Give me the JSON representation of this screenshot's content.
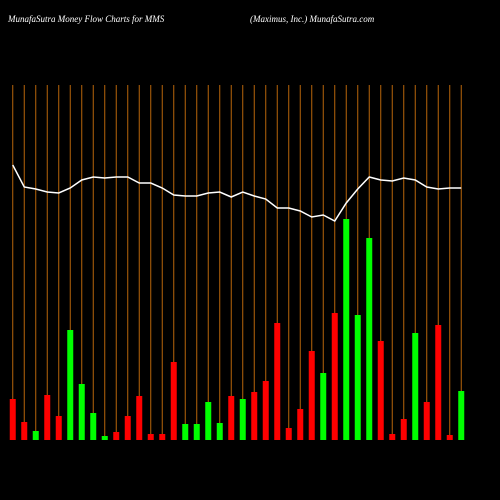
{
  "chart_data": {
    "type": "bar",
    "title": "MunafaSutra  Money Flow  Charts for MMS",
    "subtitle": "(Maximus,  Inc.) MunafaSutra.com",
    "categories": [
      null,
      null,
      null,
      null,
      null,
      null,
      null,
      null,
      null,
      null,
      null,
      null,
      null,
      null,
      null,
      null,
      null,
      null,
      null,
      null,
      null,
      null,
      null,
      null,
      null,
      null,
      null,
      null,
      null,
      null,
      null,
      null,
      null,
      null,
      null,
      null,
      null,
      null,
      null,
      null
    ],
    "values": [
      41,
      18,
      9,
      45,
      24,
      110,
      56,
      27,
      4,
      8,
      24,
      44,
      6,
      6,
      78,
      16,
      16,
      38,
      17,
      44,
      41,
      48,
      59,
      117,
      12,
      31,
      89,
      67,
      127,
      221,
      125,
      202,
      99,
      6,
      21,
      107,
      38,
      115,
      5,
      49
    ],
    "colors": [
      "#ff0000",
      "#ff0000",
      "#00ff00",
      "#ff0000",
      "#ff0000",
      "#00ff00",
      "#00ff00",
      "#00ff00",
      "#00ff00",
      "#ff0000",
      "#ff0000",
      "#ff0000",
      "#ff0000",
      "#ff0000",
      "#ff0000",
      "#00ff00",
      "#00ff00",
      "#00ff00",
      "#00ff00",
      "#ff0000",
      "#00ff00",
      "#ff0000",
      "#ff0000",
      "#ff0000",
      "#ff0000",
      "#ff0000",
      "#ff0000",
      "#00ff00",
      "#ff0000",
      "#00ff00",
      "#00ff00",
      "#00ff00",
      "#ff0000",
      "#ff0000",
      "#ff0000",
      "#00ff00",
      "#ff0000",
      "#ff0000",
      "#ff0000",
      "#00ff00"
    ],
    "line": {
      "color": "#ffffff",
      "values": [
        275,
        253,
        251,
        248,
        247,
        252,
        260,
        263,
        262,
        263,
        263,
        257,
        257,
        252,
        245,
        244,
        244,
        247,
        248,
        243,
        248,
        244,
        241,
        232,
        232,
        229,
        223,
        225,
        219,
        237,
        251,
        263,
        260,
        259,
        262,
        260,
        253,
        251,
        252,
        252
      ]
    },
    "grid_color": "#b8650a",
    "ylim": [
      0,
      355
    ]
  }
}
